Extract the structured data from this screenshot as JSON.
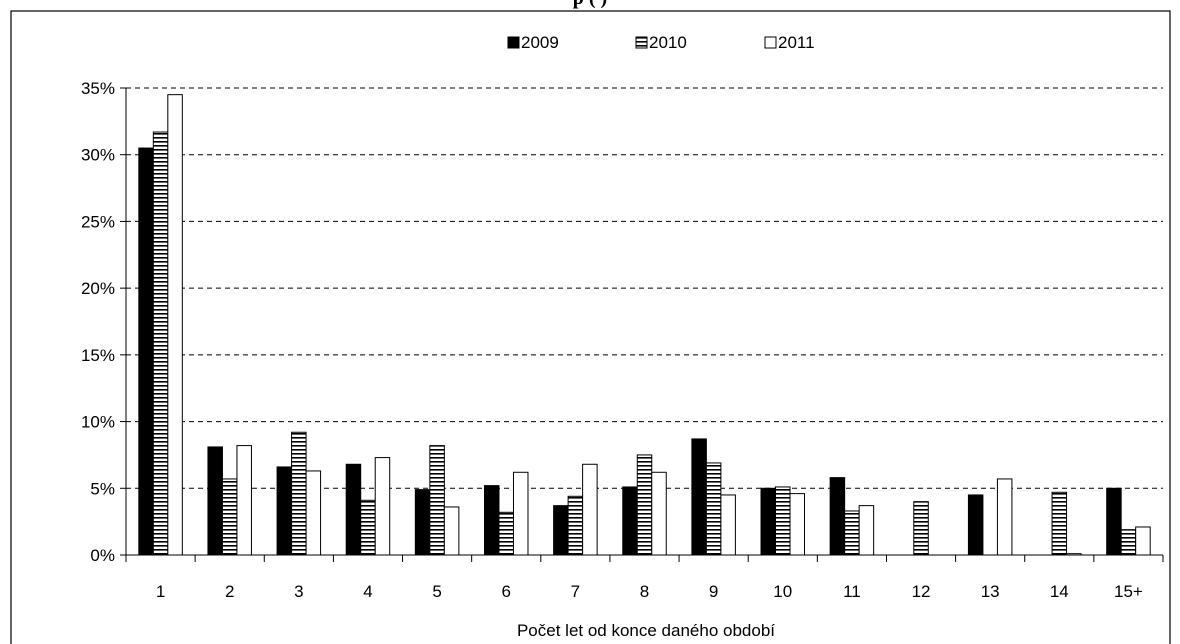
{
  "chart_data": {
    "type": "bar",
    "title": "p                                                (                              )",
    "xlabel": "Počet let od konce daného období",
    "ylabel": "",
    "categories": [
      "1",
      "2",
      "3",
      "4",
      "5",
      "6",
      "7",
      "8",
      "9",
      "10",
      "11",
      "12",
      "13",
      "14",
      "15+"
    ],
    "series": [
      {
        "name": "2009",
        "color": "#000000",
        "pattern": "solid",
        "values": [
          30.5,
          8.1,
          6.6,
          6.8,
          4.9,
          5.2,
          3.7,
          5.1,
          8.7,
          5.0,
          5.8,
          0.0,
          4.5,
          0.0,
          5.0
        ]
      },
      {
        "name": "2010",
        "color": "#ffffff",
        "pattern": "horizontal-stripes",
        "values": [
          31.7,
          5.7,
          9.2,
          4.1,
          8.2,
          3.2,
          4.4,
          7.5,
          6.9,
          5.1,
          3.3,
          4.0,
          0.0,
          4.7,
          1.9
        ]
      },
      {
        "name": "2011",
        "color": "#ffffff",
        "pattern": "hollow",
        "values": [
          34.5,
          8.2,
          6.3,
          7.3,
          3.6,
          6.2,
          6.8,
          6.2,
          4.5,
          4.6,
          3.7,
          0.0,
          5.7,
          0.1,
          2.1
        ]
      }
    ],
    "y_ticks": [
      "0%",
      "5%",
      "10%",
      "15%",
      "20%",
      "25%",
      "30%",
      "35%"
    ],
    "ylim": [
      0,
      35
    ],
    "y_unit": "%",
    "grid": "horizontal-dashed",
    "legend_position": "top-center"
  }
}
